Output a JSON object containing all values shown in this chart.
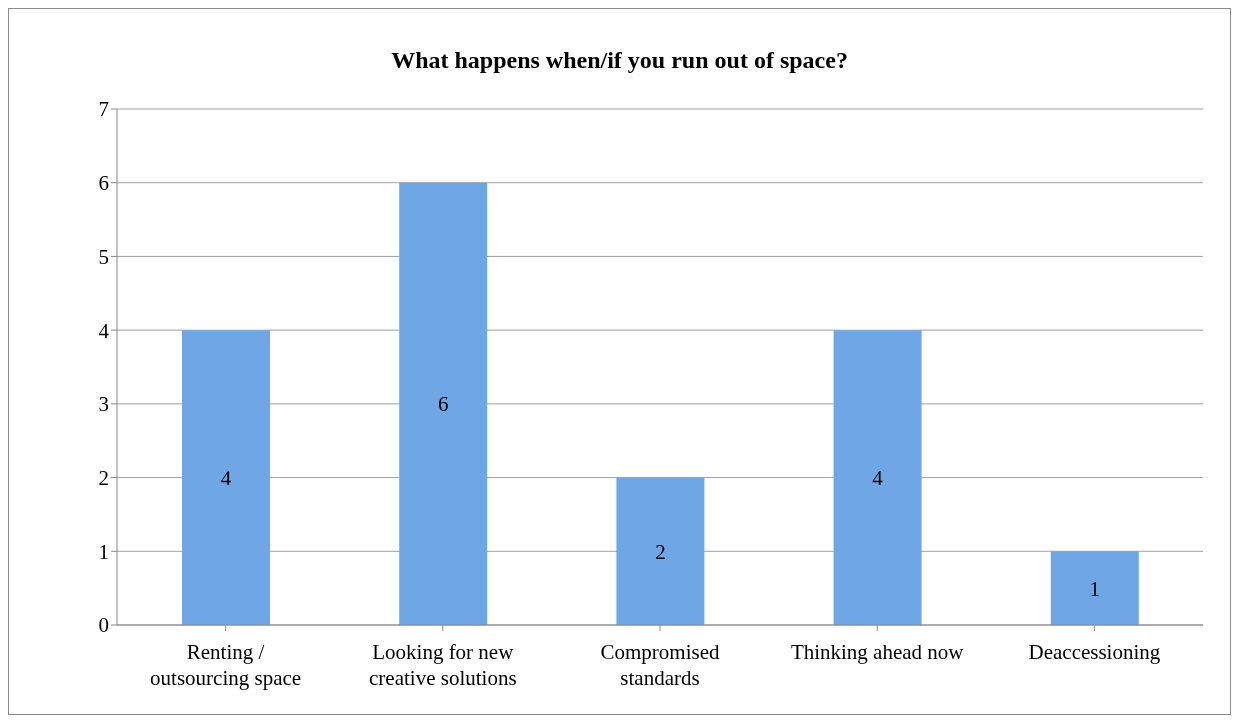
{
  "chart_data": {
    "type": "bar",
    "title": "What happens when/if you run out of space?",
    "categories": [
      "Renting /\noutsourcing space",
      "Looking for new\ncreative solutions",
      "Compromised\nstandards",
      "Thinking ahead now",
      "Deaccessioning"
    ],
    "values": [
      4,
      6,
      2,
      4,
      1
    ],
    "color": "#6ea6e6",
    "ylim": [
      0,
      7
    ],
    "yticks": [
      0,
      1,
      2,
      3,
      4,
      5,
      6,
      7
    ],
    "grid": "y",
    "data_labels": true
  }
}
